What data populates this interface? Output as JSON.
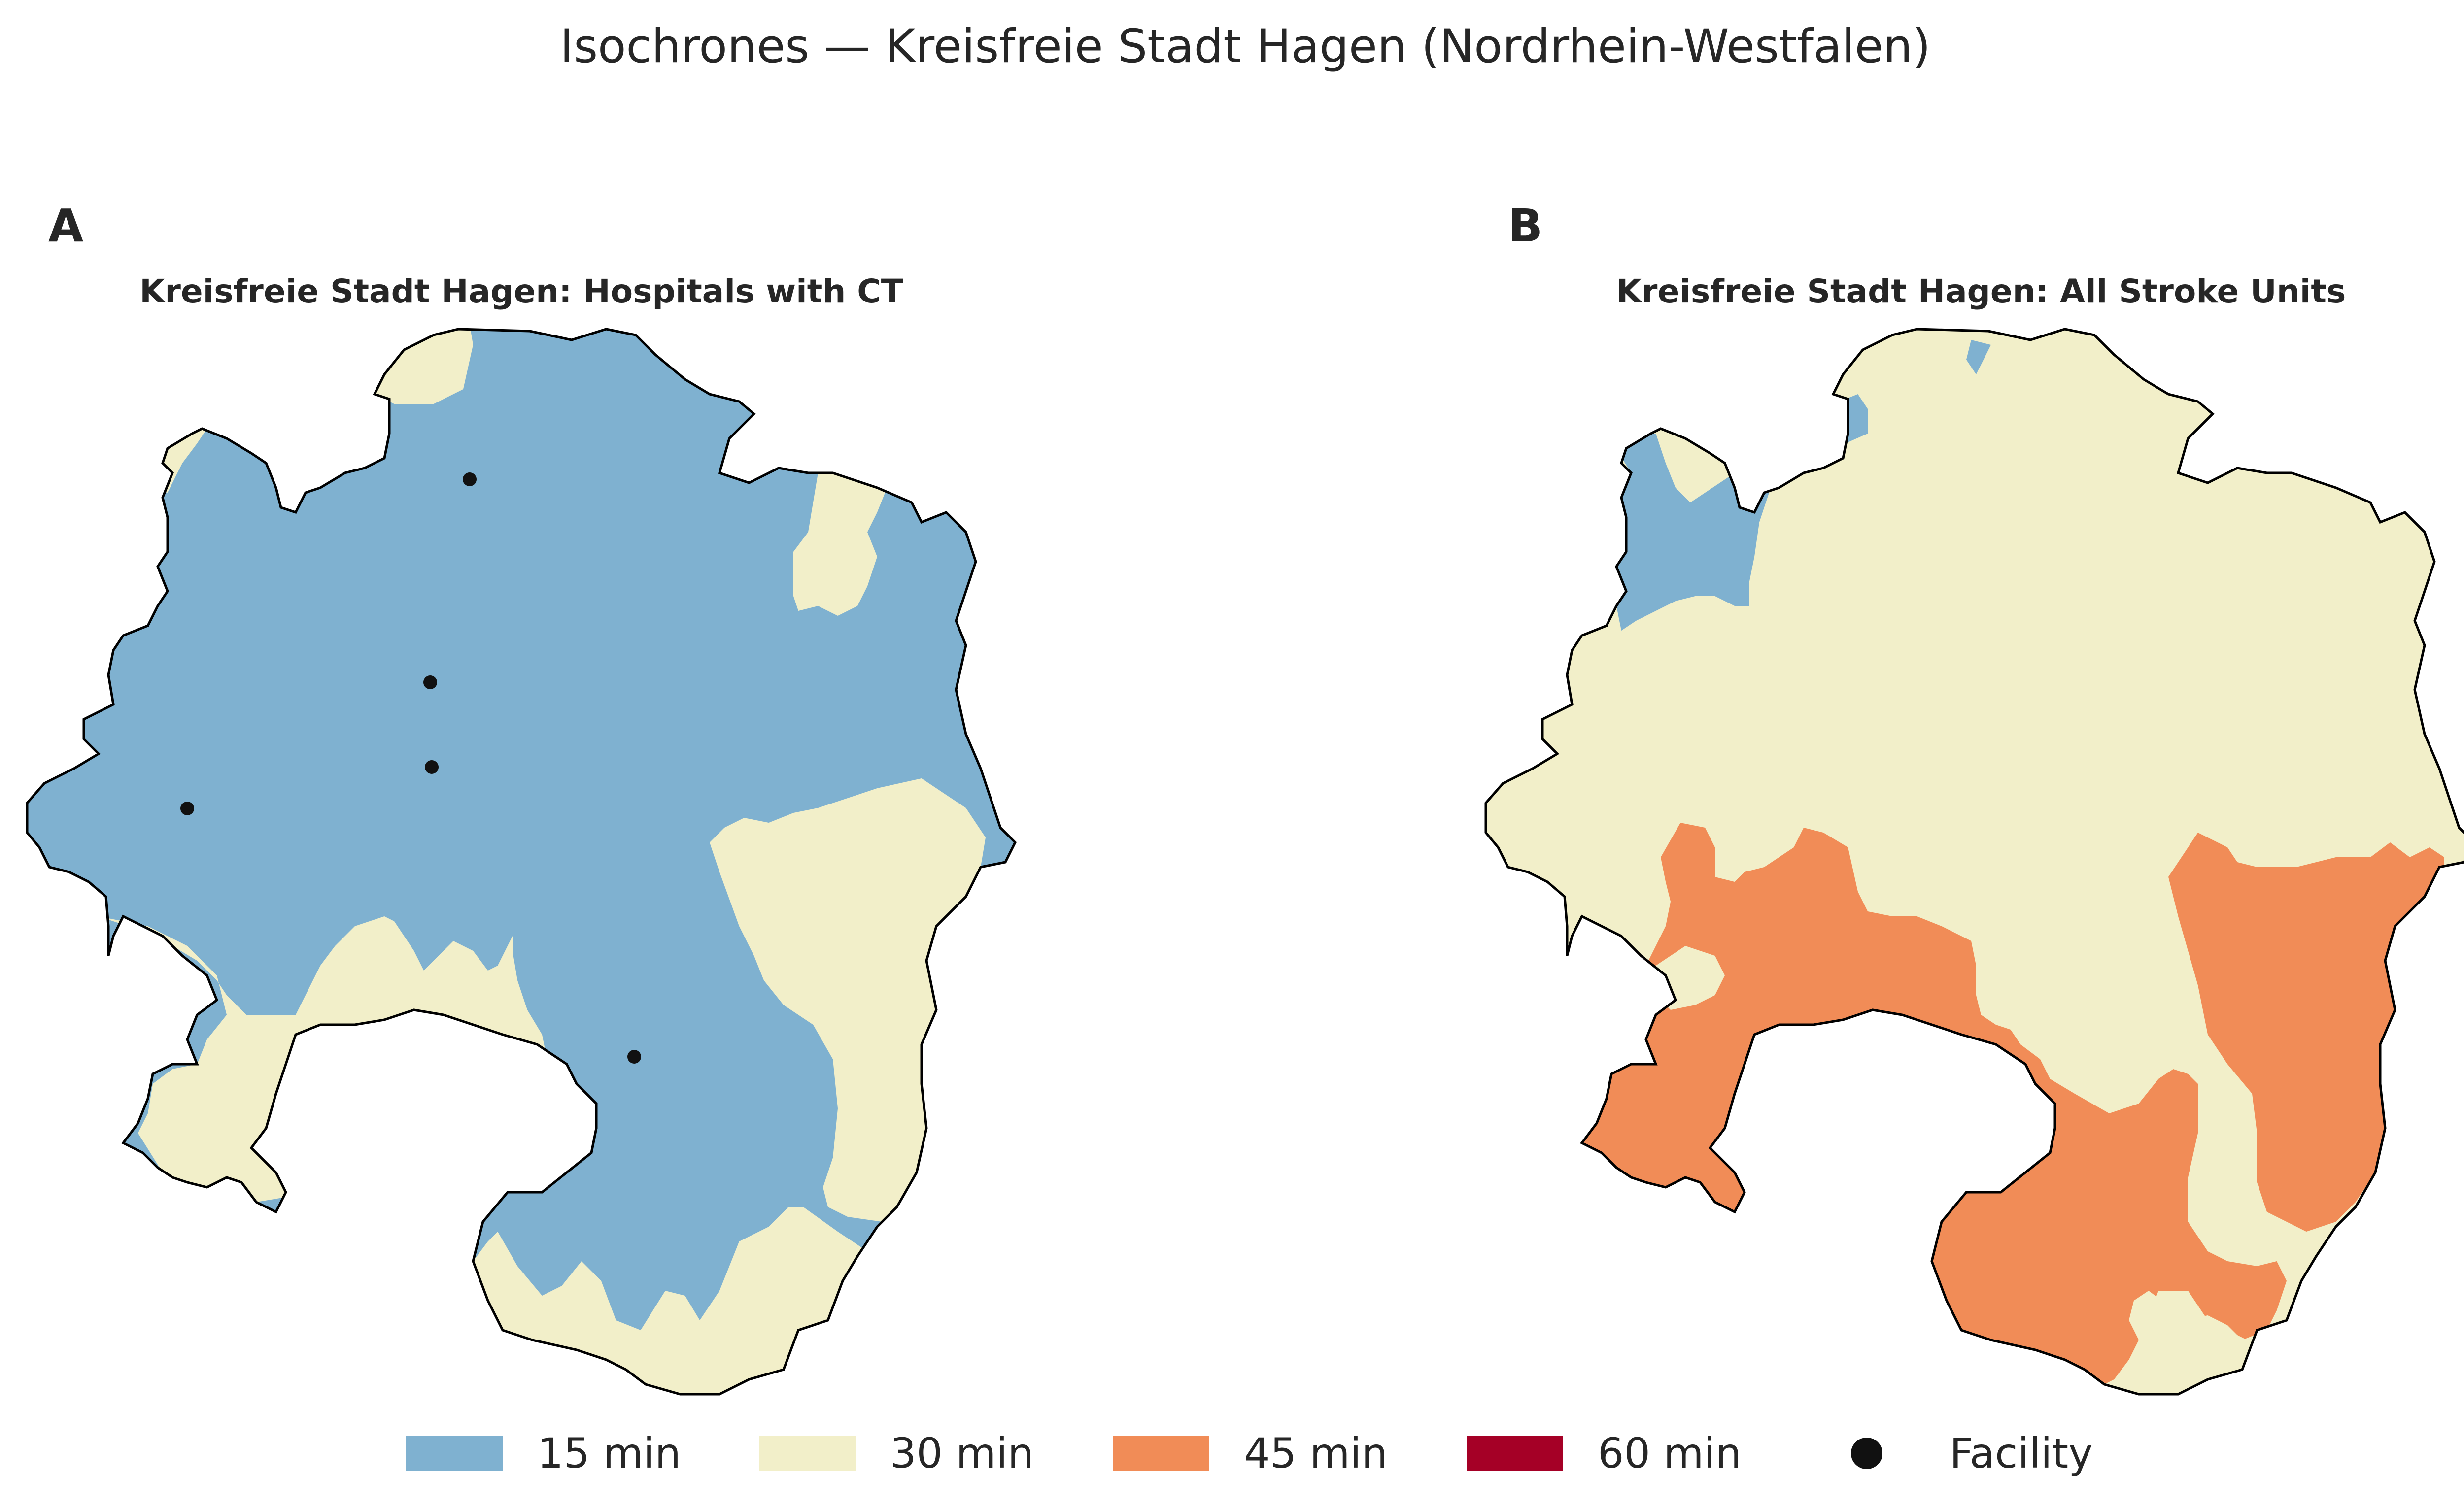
{
  "figure_title": "Isochrones — Kreisfreie Stadt Hagen (Nordrhein-Westfalen)",
  "panels": [
    {
      "letter": "A",
      "title": "Kreisfreie Stadt Hagen: Hospitals with CT"
    },
    {
      "letter": "B",
      "title": "Kreisfreie Stadt Hagen: All Stroke Units"
    }
  ],
  "legend": [
    {
      "label": "15 min",
      "color": "#7fb1d0"
    },
    {
      "label": "30 min",
      "color": "#f2efc9"
    },
    {
      "label": "45 min",
      "color": "#f18c57"
    },
    {
      "label": "60 min",
      "color": "#a50026"
    },
    {
      "label": "Facility",
      "color": "#111111"
    }
  ],
  "zone_colors": {
    "15_min": "#7fb1d0",
    "30_min": "#f2efc9",
    "45_min": "#f18c57",
    "60_min": "#a50026"
  },
  "map_data": {
    "region": "Kreisfreie Stadt Hagen",
    "panel_A": {
      "zones_present": [
        "15 min",
        "30 min"
      ],
      "facility_count": 5
    },
    "panel_B": {
      "zones_present": [
        "15 min",
        "30 min",
        "45 min"
      ],
      "facility_count": 0
    }
  }
}
